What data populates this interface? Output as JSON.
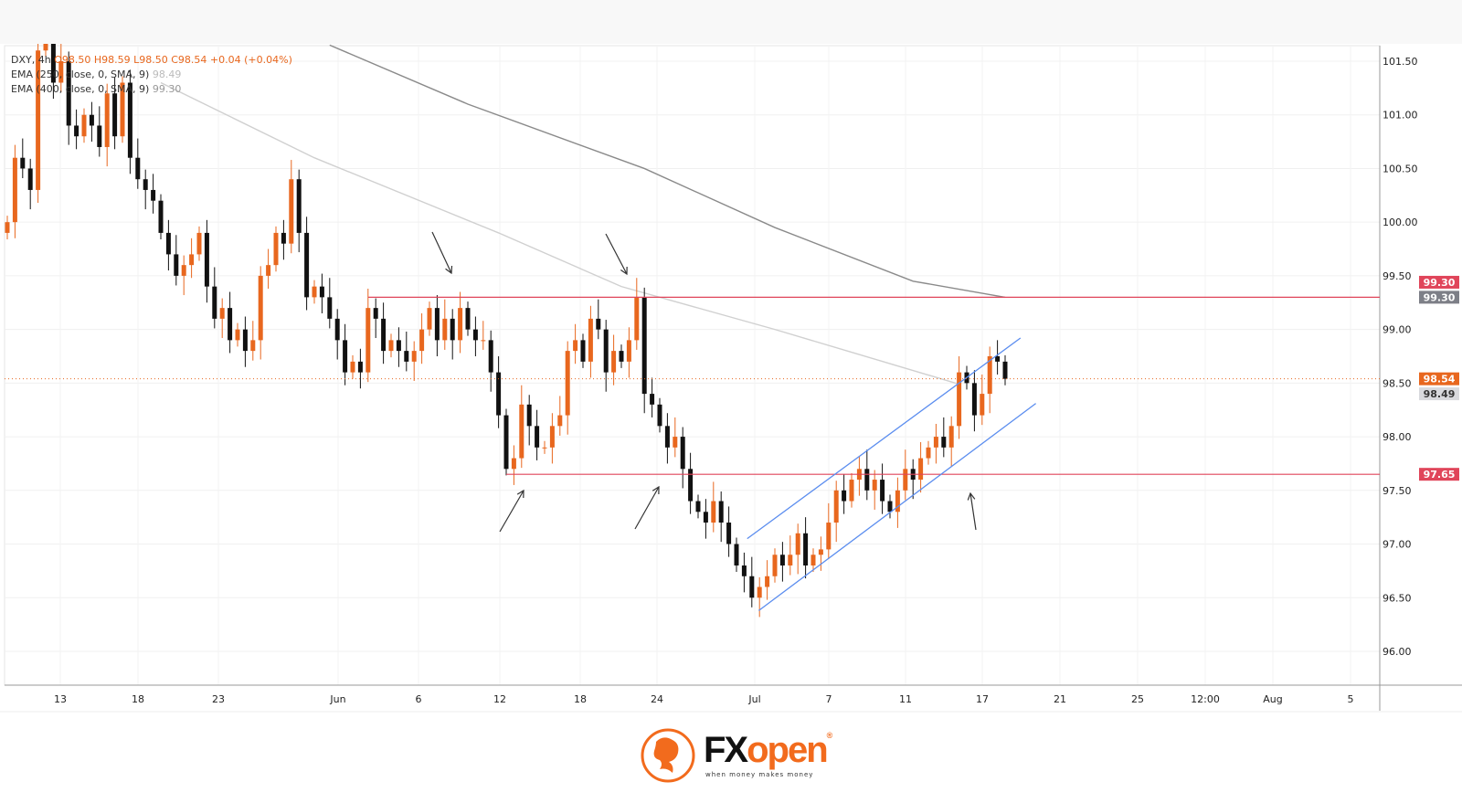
{
  "legend": {
    "symbol": "DXY, 4h",
    "open": "O98.50",
    "high": "H98.59",
    "low": "L98.50",
    "close": "C98.54",
    "change": "+0.04 (+0.04%)",
    "ema1_label": "EMA (250, close, 0, SMA, 9)",
    "ema1_value": "98.49",
    "ema2_label": "EMA (400, close, 0, SMA, 9)",
    "ema2_value": "99.30"
  },
  "colors": {
    "up": "#e8671e",
    "down": "#111111",
    "resistance": "#e0455a",
    "channel": "#5b8def",
    "ema250": "#d0d0d0",
    "ema400": "#8a8a8a",
    "last_price": "#e8671e"
  },
  "chart_data": {
    "type": "candlestick",
    "symbol": "DXY",
    "timeframe": "4h",
    "ylim": [
      95.75,
      101.65
    ],
    "y_ticks": [
      "96.00",
      "96.50",
      "97.00",
      "97.50",
      "98.00",
      "98.50",
      "99.00",
      "99.50",
      "100.00",
      "100.50",
      "101.00",
      "101.50"
    ],
    "x_ticks": [
      "13",
      "18",
      "23",
      "Jun",
      "6",
      "12",
      "18",
      "24",
      "Jul",
      "7",
      "11",
      "17",
      "21",
      "25",
      "12:00",
      "Aug",
      "5"
    ],
    "grid": true,
    "closes": [
      100.0,
      100.6,
      100.5,
      100.3,
      101.6,
      101.7,
      101.3,
      101.5,
      100.9,
      100.8,
      101.0,
      100.9,
      100.7,
      101.2,
      100.8,
      101.3,
      100.6,
      100.4,
      100.3,
      100.2,
      99.9,
      99.7,
      99.5,
      99.6,
      99.7,
      99.9,
      99.4,
      99.1,
      99.2,
      98.9,
      99.0,
      98.8,
      98.9,
      99.5,
      99.6,
      99.9,
      99.8,
      100.4,
      99.9,
      99.3,
      99.4,
      99.3,
      99.1,
      98.9,
      98.6,
      98.7,
      98.6,
      99.2,
      99.1,
      98.8,
      98.9,
      98.8,
      98.7,
      98.8,
      99.0,
      99.2,
      98.9,
      99.1,
      98.9,
      99.2,
      99.0,
      98.9,
      98.9,
      98.6,
      98.2,
      97.7,
      97.8,
      98.3,
      98.1,
      97.9,
      97.9,
      98.1,
      98.2,
      98.8,
      98.9,
      98.7,
      99.1,
      99.0,
      98.6,
      98.8,
      98.7,
      98.9,
      99.3,
      98.4,
      98.3,
      98.1,
      97.9,
      98.0,
      97.7,
      97.4,
      97.3,
      97.2,
      97.4,
      97.2,
      97.0,
      96.8,
      96.7,
      96.5,
      96.6,
      96.7,
      96.9,
      96.8,
      96.9,
      97.1,
      96.8,
      96.9,
      96.95,
      97.2,
      97.5,
      97.4,
      97.6,
      97.7,
      97.5,
      97.6,
      97.4,
      97.3,
      97.5,
      97.7,
      97.6,
      97.8,
      97.9,
      98.0,
      97.9,
      98.1,
      98.6,
      98.5,
      98.2,
      98.4,
      98.75,
      98.7,
      98.54
    ],
    "ema250": [
      [
        20,
        101.3
      ],
      [
        40,
        100.6
      ],
      [
        64,
        99.9
      ],
      [
        80,
        99.4
      ],
      [
        100,
        99.0
      ],
      [
        124,
        98.49
      ]
    ],
    "ema400": [
      [
        42,
        101.65
      ],
      [
        60,
        101.1
      ],
      [
        83,
        100.5
      ],
      [
        100,
        99.95
      ],
      [
        118,
        99.45
      ],
      [
        130,
        99.3
      ]
    ],
    "horizontal_levels": [
      {
        "price": 99.3,
        "label": "99.30",
        "from_bar": 47
      },
      {
        "price": 97.65,
        "label": "97.65",
        "from_bar": 65
      }
    ],
    "channel": {
      "upper": [
        [
          96.4,
          97.05
        ],
        [
          132,
          98.92
        ]
      ],
      "lower": [
        [
          97.9,
          96.38
        ],
        [
          134,
          98.31
        ]
      ]
    },
    "last_price": {
      "value": 98.54,
      "label": "98.54"
    },
    "ema250_price_label": "98.49",
    "ema400_price_label": "99.30"
  },
  "logo": {
    "brand": "FXopen",
    "fx": "FX",
    "open": "open",
    "tagline": "when money makes money",
    "reg": "®"
  }
}
